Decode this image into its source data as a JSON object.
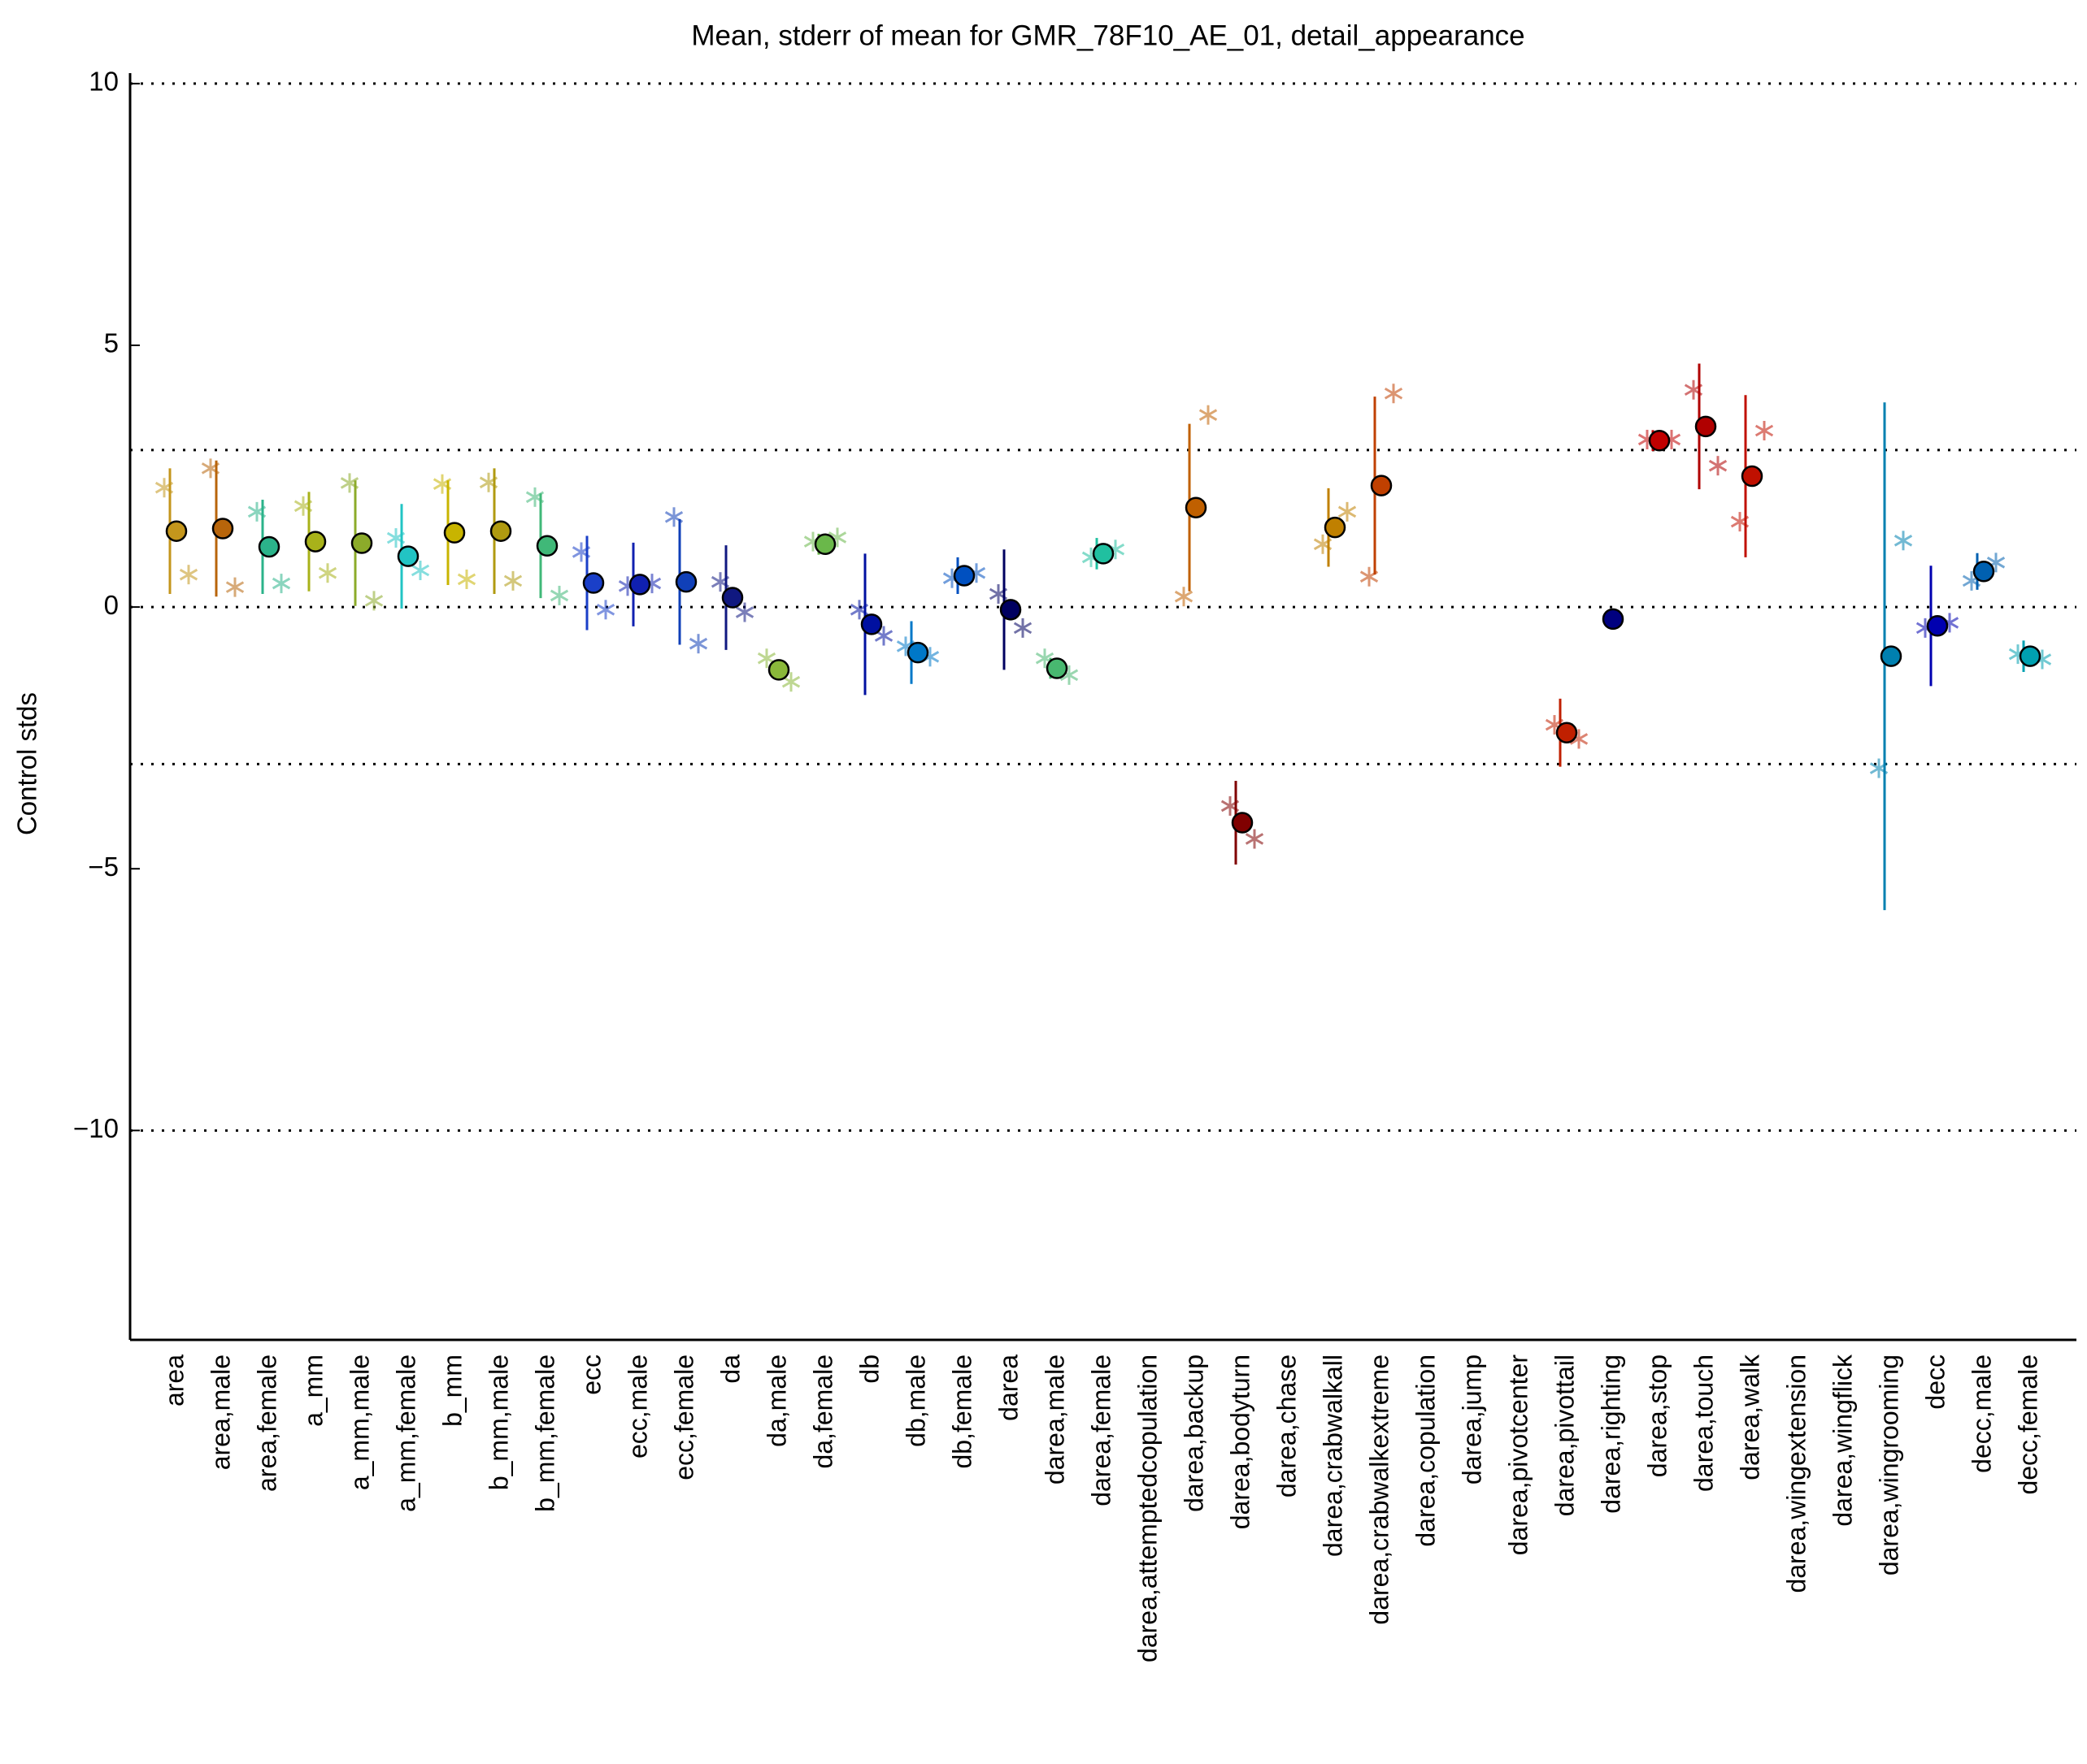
{
  "chart_data": {
    "type": "errorbar",
    "title": "Mean, stderr of mean for GMR_78F10_AE_01, detail_appearance",
    "ylabel": "Control stds",
    "categories": [
      "area",
      "area,male",
      "area,female",
      "a_mm",
      "a_mm,male",
      "a_mm,female",
      "b_mm",
      "b_mm,male",
      "b_mm,female",
      "ecc",
      "ecc,male",
      "ecc,female",
      "da",
      "da,male",
      "da,female",
      "db",
      "db,male",
      "db,female",
      "darea",
      "darea,male",
      "darea,female",
      "darea,attemptedcopulation",
      "darea,backup",
      "darea,bodyturn",
      "darea,chase",
      "darea,crabwalkall",
      "darea,crabwalkextreme",
      "darea,copulation",
      "darea,jump",
      "darea,pivotcenter",
      "darea,pivottail",
      "darea,righting",
      "darea,stop",
      "darea,touch",
      "darea,walk",
      "darea,wingextension",
      "darea,wingflick",
      "darea,wingrooming",
      "decc",
      "decc,male",
      "decc,female"
    ],
    "colors": [
      "#c4961c",
      "#b8650b",
      "#2bb38a",
      "#a8b21a",
      "#8cab2a",
      "#22c4c4",
      "#c8b400",
      "#b09a10",
      "#40b878",
      "#1a3fc8",
      "#1020b0",
      "#1040b8",
      "#101880",
      "#8ab83a",
      "#6ab84a",
      "#0010a0",
      "#0078c8",
      "#0050c0",
      "#000060",
      "#48b870",
      "#20c0a0",
      "#909090",
      "#c06000",
      "#800000",
      "#909090",
      "#c08000",
      "#c04000",
      "#909090",
      "#909090",
      "#909090",
      "#c02000",
      "#000080",
      "#c00000",
      "#b00000",
      "#c01000",
      "#909090",
      "#909090",
      "#0080b0",
      "#0000b0",
      "#0060b0",
      "#00a0b0"
    ],
    "values": [
      1.45,
      1.5,
      1.15,
      1.25,
      1.22,
      0.97,
      1.42,
      1.45,
      1.17,
      0.46,
      0.43,
      0.48,
      0.18,
      -1.2,
      1.2,
      -0.33,
      -0.87,
      0.6,
      -0.05,
      -1.17,
      1.02,
      null,
      1.9,
      -4.12,
      null,
      1.52,
      2.32,
      null,
      null,
      null,
      -2.4,
      -0.23,
      3.18,
      3.45,
      2.5,
      null,
      null,
      -0.94,
      -0.36,
      0.68,
      -0.94
    ],
    "errors": [
      1.2,
      1.3,
      0.9,
      0.95,
      1.2,
      1.0,
      1.0,
      1.2,
      1.0,
      0.9,
      0.8,
      1.2,
      1.0,
      0.15,
      0.2,
      1.35,
      0.6,
      0.35,
      1.15,
      0.2,
      0.3,
      null,
      1.6,
      0.8,
      null,
      0.75,
      1.7,
      null,
      null,
      null,
      0.65,
      0.15,
      0.2,
      1.2,
      1.55,
      null,
      null,
      4.85,
      1.15,
      0.35,
      0.3
    ],
    "left_values": [
      2.28,
      2.65,
      1.82,
      1.93,
      2.37,
      1.32,
      2.35,
      2.38,
      2.1,
      1.05,
      0.4,
      1.72,
      0.48,
      -0.98,
      1.25,
      -0.05,
      -0.75,
      0.55,
      0.25,
      -0.98,
      0.95,
      null,
      0.2,
      -3.8,
      null,
      1.2,
      0.58,
      null,
      null,
      null,
      -2.25,
      null,
      3.2,
      4.15,
      1.63,
      null,
      null,
      -3.08,
      -0.4,
      0.5,
      -0.9
    ],
    "right_values": [
      0.62,
      0.38,
      0.45,
      0.65,
      0.12,
      0.7,
      0.53,
      0.5,
      0.22,
      -0.05,
      0.45,
      -0.7,
      -0.1,
      -1.43,
      1.33,
      -0.55,
      -0.95,
      0.65,
      -0.4,
      -1.3,
      1.1,
      null,
      3.67,
      -4.43,
      null,
      1.82,
      4.08,
      null,
      null,
      null,
      -2.52,
      null,
      3.2,
      2.7,
      3.37,
      null,
      null,
      1.27,
      -0.3,
      0.85,
      -1.0
    ],
    "ylim": [
      -14,
      10.2
    ],
    "yticks": [
      10,
      5,
      0,
      {
        "value": -5,
        "label": "−5"
      },
      {
        "value": -10,
        "label": "−10"
      }
    ],
    "hlines": [
      10,
      3,
      0,
      -3,
      -10
    ]
  }
}
